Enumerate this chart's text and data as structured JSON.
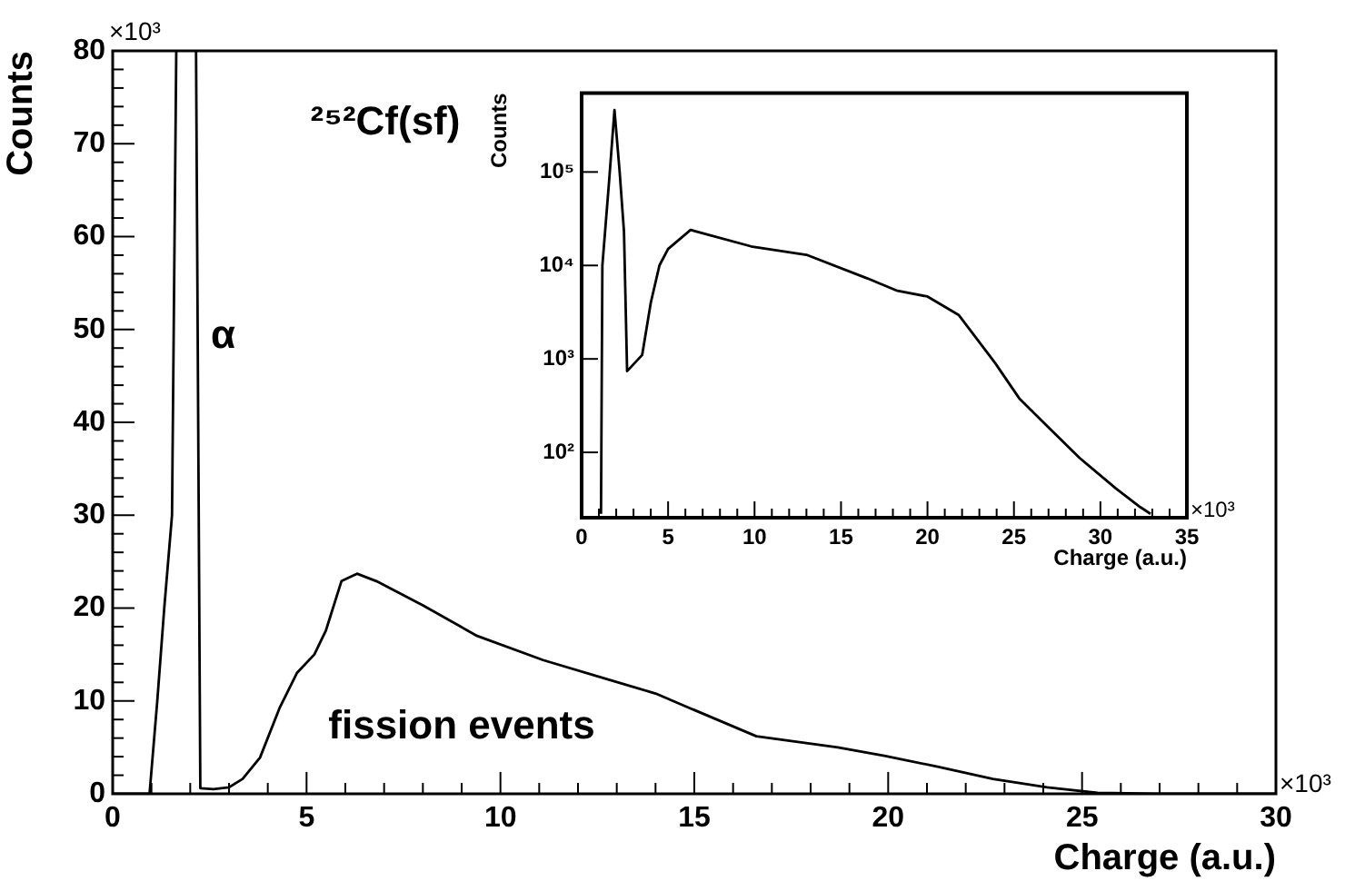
{
  "chart_data": [
    {
      "type": "line",
      "title": "²⁵²Cf(sf)",
      "xlabel": "Charge (a.u.)",
      "ylabel": "Counts",
      "annotations": [
        "×10³",
        "×10³",
        "α",
        "fission events"
      ],
      "series": [
        {
          "color": "#000000",
          "x": [
            0,
            0.95,
            1.15,
            1.33,
            1.53,
            1.64,
            1.9,
            2.15,
            2.26,
            2.6,
            3.0,
            3.35,
            3.8,
            4.3,
            4.75,
            5.2,
            5.5,
            5.9,
            6.3,
            6.8,
            8.0,
            9.4,
            11.1,
            12.7,
            14.0,
            14.9,
            16.6,
            18.7,
            19.9,
            21.3,
            22.7,
            24.1,
            25.4,
            27,
            30
          ],
          "values": [
            0,
            0,
            10,
            20,
            30,
            80,
            null,
            80,
            0.6,
            0.5,
            0.7,
            1.6,
            3.9,
            9.2,
            13,
            15,
            17.6,
            22.9,
            23.7,
            22.9,
            20.3,
            17,
            14.4,
            12.4,
            10.8,
            9.2,
            6.2,
            5.0,
            4.1,
            2.9,
            1.6,
            0.7,
            0.1,
            0,
            0
          ]
        }
      ],
      "xlim": [
        0,
        30
      ],
      "ylim": [
        0,
        80
      ],
      "xticks": [
        0,
        {
          "value": 1,
          "label": null
        },
        {
          "value": 2,
          "label": null
        },
        {
          "value": 3,
          "label": null
        },
        {
          "value": 4,
          "label": null
        },
        5,
        {
          "value": 6,
          "label": null
        },
        {
          "value": 7,
          "label": null
        },
        {
          "value": 8,
          "label": null
        },
        {
          "value": 9,
          "label": null
        },
        10,
        {
          "value": 11,
          "label": null
        },
        {
          "value": 12,
          "label": null
        },
        {
          "value": 13,
          "label": null
        },
        {
          "value": 14,
          "label": null
        },
        15,
        {
          "value": 16,
          "label": null
        },
        {
          "value": 17,
          "label": null
        },
        {
          "value": 18,
          "label": null
        },
        {
          "value": 19,
          "label": null
        },
        20,
        {
          "value": 21,
          "label": null
        },
        {
          "value": 22,
          "label": null
        },
        {
          "value": 23,
          "label": null
        },
        {
          "value": 24,
          "label": null
        },
        25,
        {
          "value": 26,
          "label": null
        },
        {
          "value": 27,
          "label": null
        },
        {
          "value": 28,
          "label": null
        },
        {
          "value": 29,
          "label": null
        },
        30
      ],
      "yticks": [
        0,
        {
          "value": 2,
          "label": null
        },
        {
          "value": 4,
          "label": null
        },
        {
          "value": 6,
          "label": null
        },
        {
          "value": 8,
          "label": null
        },
        10,
        {
          "value": 12,
          "label": null
        },
        {
          "value": 14,
          "label": null
        },
        {
          "value": 16,
          "label": null
        },
        {
          "value": 18,
          "label": null
        },
        20,
        {
          "value": 22,
          "label": null
        },
        {
          "value": 24,
          "label": null
        },
        {
          "value": 26,
          "label": null
        },
        {
          "value": 28,
          "label": null
        },
        30,
        {
          "value": 32,
          "label": null
        },
        {
          "value": 34,
          "label": null
        },
        {
          "value": 36,
          "label": null
        },
        {
          "value": 38,
          "label": null
        },
        40,
        {
          "value": 42,
          "label": null
        },
        {
          "value": 44,
          "label": null
        },
        {
          "value": 46,
          "label": null
        },
        {
          "value": 48,
          "label": null
        },
        50,
        {
          "value": 52,
          "label": null
        },
        {
          "value": 54,
          "label": null
        },
        {
          "value": 56,
          "label": null
        },
        {
          "value": 58,
          "label": null
        },
        60,
        {
          "value": 62,
          "label": null
        },
        {
          "value": 64,
          "label": null
        },
        {
          "value": 66,
          "label": null
        },
        {
          "value": 68,
          "label": null
        },
        70,
        {
          "value": 72,
          "label": null
        },
        {
          "value": 74,
          "label": null
        },
        {
          "value": 76,
          "label": null
        },
        {
          "value": 78,
          "label": null
        },
        80
      ],
      "grid": false,
      "marker": "none"
    },
    {
      "type": "line",
      "xlabel": "Charge (a.u.)",
      "ylabel": "Counts",
      "log": "y",
      "annotations": [
        "×10³"
      ],
      "series": [
        {
          "color": "#000000",
          "x": [
            1.12,
            1.2,
            1.58,
            1.9,
            2.2,
            2.45,
            2.63,
            3.5,
            4.0,
            4.5,
            5.0,
            6.3,
            9.8,
            13,
            16.5,
            18.2,
            20,
            21.8,
            23.9,
            25.3,
            26.7,
            28.8,
            30.9,
            32.3,
            32.9
          ],
          "values": [
            22,
            10000,
            76000,
            460000,
            100000,
            23000,
            740,
            1100,
            4000,
            10000,
            15000,
            24000,
            16000,
            13000,
            7300,
            5400,
            4650,
            2960,
            910,
            380,
            210,
            87,
            41,
            26,
            22
          ]
        }
      ],
      "xlim": [
        0,
        35
      ],
      "ylim": [
        20,
        700000
      ],
      "xticks": [
        0,
        {
          "value": 1,
          "label": null
        },
        {
          "value": 2,
          "label": null
        },
        {
          "value": 3,
          "label": null
        },
        {
          "value": 4,
          "label": null
        },
        5,
        {
          "value": 6,
          "label": null
        },
        {
          "value": 7,
          "label": null
        },
        {
          "value": 8,
          "label": null
        },
        {
          "value": 9,
          "label": null
        },
        10,
        {
          "value": 11,
          "label": null
        },
        {
          "value": 12,
          "label": null
        },
        {
          "value": 13,
          "label": null
        },
        {
          "value": 14,
          "label": null
        },
        15,
        {
          "value": 16,
          "label": null
        },
        {
          "value": 17,
          "label": null
        },
        {
          "value": 18,
          "label": null
        },
        {
          "value": 19,
          "label": null
        },
        20,
        {
          "value": 21,
          "label": null
        },
        {
          "value": 22,
          "label": null
        },
        {
          "value": 23,
          "label": null
        },
        {
          "value": 24,
          "label": null
        },
        25,
        {
          "value": 26,
          "label": null
        },
        {
          "value": 27,
          "label": null
        },
        {
          "value": 28,
          "label": null
        },
        {
          "value": 29,
          "label": null
        },
        30,
        {
          "value": 31,
          "label": null
        },
        {
          "value": 32,
          "label": null
        },
        {
          "value": 33,
          "label": null
        },
        {
          "value": 34,
          "label": null
        },
        35
      ],
      "yticks": [
        {
          "value": 100,
          "label": "10²"
        },
        {
          "value": 1000,
          "label": "10³"
        },
        {
          "value": 10000,
          "label": "10⁴"
        },
        {
          "value": 100000,
          "label": "10⁵"
        }
      ],
      "grid": false,
      "marker": "none"
    }
  ]
}
